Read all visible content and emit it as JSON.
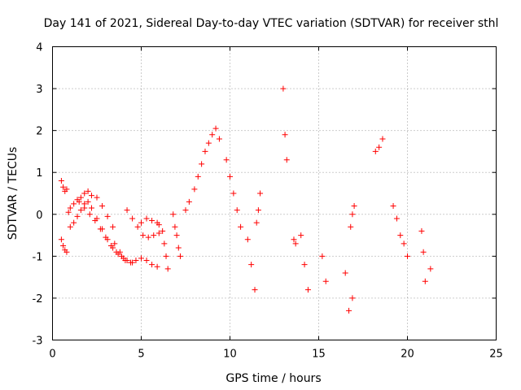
{
  "chart_data": {
    "type": "scatter",
    "title": "Day 141 of 2021, Sidereal Day-to-day VTEC variation (SDTVAR) for receiver sthl",
    "xlabel": "GPS time / hours",
    "ylabel": "SDTVAR / TECUs",
    "xlim": [
      0,
      25
    ],
    "ylim": [
      -3,
      4
    ],
    "xticks": [
      0,
      5,
      10,
      15,
      20,
      25
    ],
    "yticks": [
      -3,
      -2,
      -1,
      0,
      1,
      2,
      3,
      4
    ],
    "xtick_labels": [
      "0",
      "5",
      "10",
      "15",
      "20",
      "25"
    ],
    "ytick_labels": [
      "-3",
      "-2",
      "-1",
      "0",
      "1",
      "2",
      "3",
      "4"
    ],
    "grid": true,
    "marker": "+",
    "color": "#ff0000",
    "series": [
      {
        "name": "SDTVAR",
        "segments": [
          {
            "x": [
              0.5,
              0.6,
              0.7,
              0.8
            ],
            "y": [
              0.8,
              0.65,
              0.55,
              0.6
            ]
          },
          {
            "x": [
              0.5,
              0.6,
              0.7,
              0.8
            ],
            "y": [
              -0.6,
              -0.75,
              -0.85,
              -0.9
            ]
          },
          {
            "x": [
              0.9,
              1.0,
              1.2,
              1.4,
              1.6,
              1.8,
              2.0,
              2.2
            ],
            "y": [
              0.05,
              0.15,
              0.25,
              0.35,
              0.4,
              0.5,
              0.55,
              0.45
            ]
          },
          {
            "x": [
              1.0,
              1.2,
              1.4,
              1.6,
              1.8,
              2.0,
              2.2,
              2.5,
              2.8,
              3.1,
              3.4,
              3.7,
              4.0
            ],
            "y": [
              -0.3,
              -0.2,
              -0.05,
              0.1,
              0.25,
              0.3,
              0.15,
              -0.1,
              -0.35,
              -0.6,
              -0.8,
              -0.95,
              -1.05
            ]
          },
          {
            "x": [
              1.5,
              1.8,
              2.1,
              2.4,
              2.7,
              3.0,
              3.3,
              3.6,
              3.9,
              4.2,
              4.5
            ],
            "y": [
              0.3,
              0.15,
              0.0,
              -0.15,
              -0.35,
              -0.55,
              -0.75,
              -0.9,
              -1.0,
              -1.1,
              -1.15
            ]
          },
          {
            "x": [
              2.5,
              2.8,
              3.1,
              3.4
            ],
            "y": [
              0.4,
              0.2,
              -0.05,
              -0.3
            ]
          },
          {
            "x": [
              3.5,
              3.8,
              4.1,
              4.4,
              4.7,
              5.0,
              5.3,
              5.6,
              5.9
            ],
            "y": [
              -0.7,
              -0.9,
              -1.1,
              -1.15,
              -1.1,
              -1.05,
              -1.1,
              -1.2,
              -1.25
            ]
          },
          {
            "x": [
              4.2,
              4.5,
              4.8,
              5.1,
              5.4,
              5.7,
              6.0
            ],
            "y": [
              0.1,
              -0.1,
              -0.3,
              -0.5,
              -0.55,
              -0.5,
              -0.45
            ]
          },
          {
            "x": [
              5.0,
              5.3,
              5.6,
              5.9,
              6.0
            ],
            "y": [
              -0.2,
              -0.1,
              -0.15,
              -0.2,
              -0.25
            ]
          },
          {
            "x": [
              6.2,
              6.3,
              6.4,
              6.5
            ],
            "y": [
              -0.4,
              -0.7,
              -1.0,
              -1.3
            ]
          },
          {
            "x": [
              6.8,
              6.9,
              7.0,
              7.1,
              7.2
            ],
            "y": [
              0.0,
              -0.3,
              -0.5,
              -0.8,
              -1.0
            ]
          },
          {
            "x": [
              7.5,
              7.7,
              8.0,
              8.2,
              8.4,
              8.6,
              8.8,
              9.0,
              9.2,
              9.4
            ],
            "y": [
              0.1,
              0.3,
              0.6,
              0.9,
              1.2,
              1.5,
              1.7,
              1.9,
              2.05,
              1.8
            ]
          },
          {
            "x": [
              9.8,
              10.0,
              10.2,
              10.4,
              10.6
            ],
            "y": [
              1.3,
              0.9,
              0.5,
              0.1,
              -0.3
            ]
          },
          {
            "x": [
              11.0,
              11.2,
              11.4
            ],
            "y": [
              -0.6,
              -1.2,
              -1.8
            ]
          },
          {
            "x": [
              11.5,
              11.6,
              11.7
            ],
            "y": [
              -0.2,
              0.1,
              0.5
            ]
          },
          {
            "x": [
              13.0,
              13.1,
              13.2
            ],
            "y": [
              3.0,
              1.9,
              1.3
            ]
          },
          {
            "x": [
              13.6,
              13.7
            ],
            "y": [
              -0.6,
              -0.7
            ]
          },
          {
            "x": [
              14.0,
              14.2,
              14.4
            ],
            "y": [
              -0.5,
              -1.2,
              -1.8
            ]
          },
          {
            "x": [
              15.2,
              15.4
            ],
            "y": [
              -1.0,
              -1.6
            ]
          },
          {
            "x": [
              16.5,
              16.7,
              16.9
            ],
            "y": [
              -1.4,
              -2.3,
              -2.0
            ]
          },
          {
            "x": [
              16.8,
              16.9,
              17.0
            ],
            "y": [
              -0.3,
              0.0,
              0.2
            ]
          },
          {
            "x": [
              18.2,
              18.4,
              18.6
            ],
            "y": [
              1.5,
              1.6,
              1.8
            ]
          },
          {
            "x": [
              19.2,
              19.4,
              19.6,
              19.8,
              20.0
            ],
            "y": [
              0.2,
              -0.1,
              -0.5,
              -0.7,
              -1.0
            ]
          },
          {
            "x": [
              20.8,
              20.9,
              21.0
            ],
            "y": [
              -0.4,
              -0.9,
              -1.6
            ]
          },
          {
            "x": [
              21.3
            ],
            "y": [
              -1.3
            ]
          }
        ]
      }
    ]
  }
}
